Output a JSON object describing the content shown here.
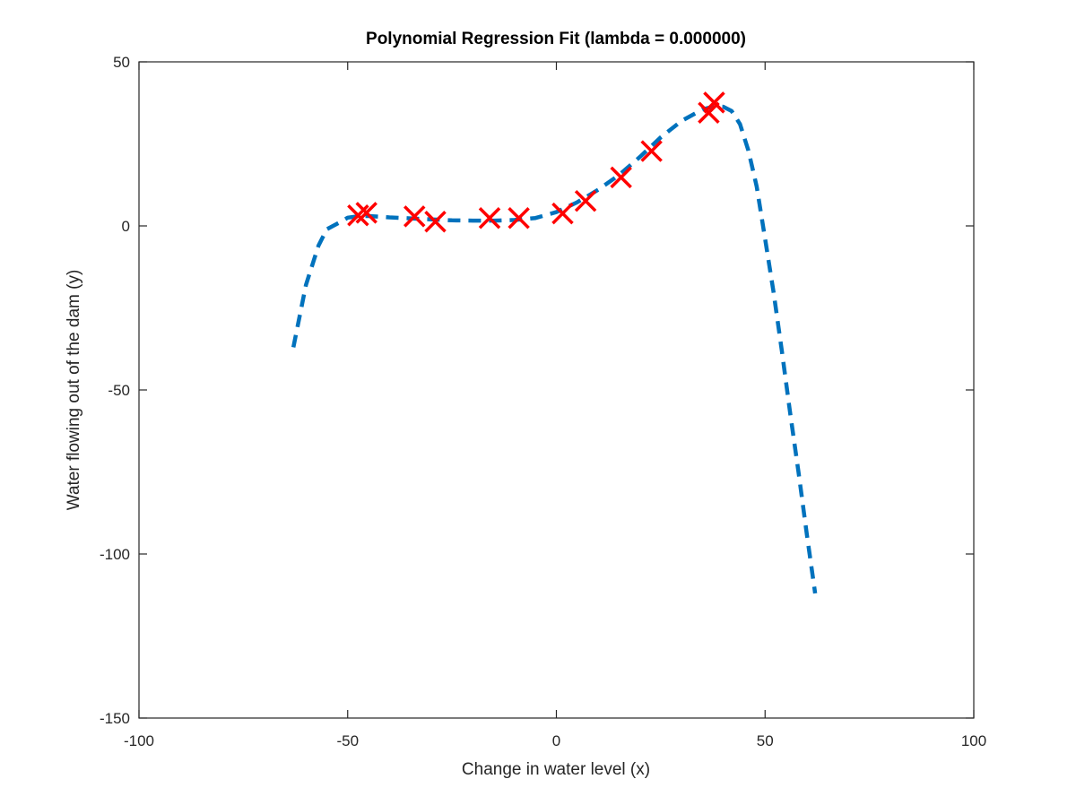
{
  "chart_data": {
    "type": "scatter",
    "title": "Polynomial Regression Fit (lambda = 0.000000)",
    "xlabel": "Change in water level (x)",
    "ylabel": "Water flowing out of the dam (y)",
    "xlim": [
      -100,
      100
    ],
    "ylim": [
      -150,
      50
    ],
    "xticks": [
      "-100",
      "-50",
      "0",
      "50",
      "100"
    ],
    "yticks": [
      "50",
      "0",
      "-50",
      "-100",
      "-150"
    ],
    "grid": false,
    "legend": "none",
    "series": [
      {
        "kind": "markers",
        "marker": "x",
        "color": "#ff0000",
        "x": [
          -47.5,
          -45.5,
          -34.0,
          -29.0,
          -16.0,
          -9.0,
          1.5,
          7.0,
          15.5,
          22.8,
          36.5,
          37.8
        ],
        "y": [
          3.2,
          4.0,
          2.9,
          1.3,
          2.4,
          2.4,
          3.8,
          7.6,
          14.8,
          22.8,
          34.5,
          37.6
        ]
      },
      {
        "kind": "fit-line",
        "line_style": "dashed",
        "color": "#0072bd",
        "x": [
          -63,
          -60,
          -57,
          -55,
          -52,
          -50,
          -47,
          -45,
          -42,
          -40,
          -35,
          -30,
          -25,
          -20,
          -15,
          -10,
          -5,
          0,
          5,
          10,
          15,
          20,
          25,
          30,
          35,
          38,
          40,
          42,
          44,
          46,
          48,
          50,
          52,
          54,
          56,
          58,
          60,
          62
        ],
        "y": [
          -37,
          -18,
          -6,
          -1,
          1,
          2.5,
          3,
          3,
          2.8,
          2.6,
          2.3,
          2,
          1.7,
          1.6,
          1.6,
          1.8,
          2.4,
          4.2,
          7.2,
          11,
          15.5,
          21,
          27,
          32,
          35.5,
          36.5,
          36.3,
          35,
          31,
          23,
          12,
          -4,
          -20,
          -38,
          -57,
          -75,
          -94,
          -112
        ]
      }
    ]
  }
}
